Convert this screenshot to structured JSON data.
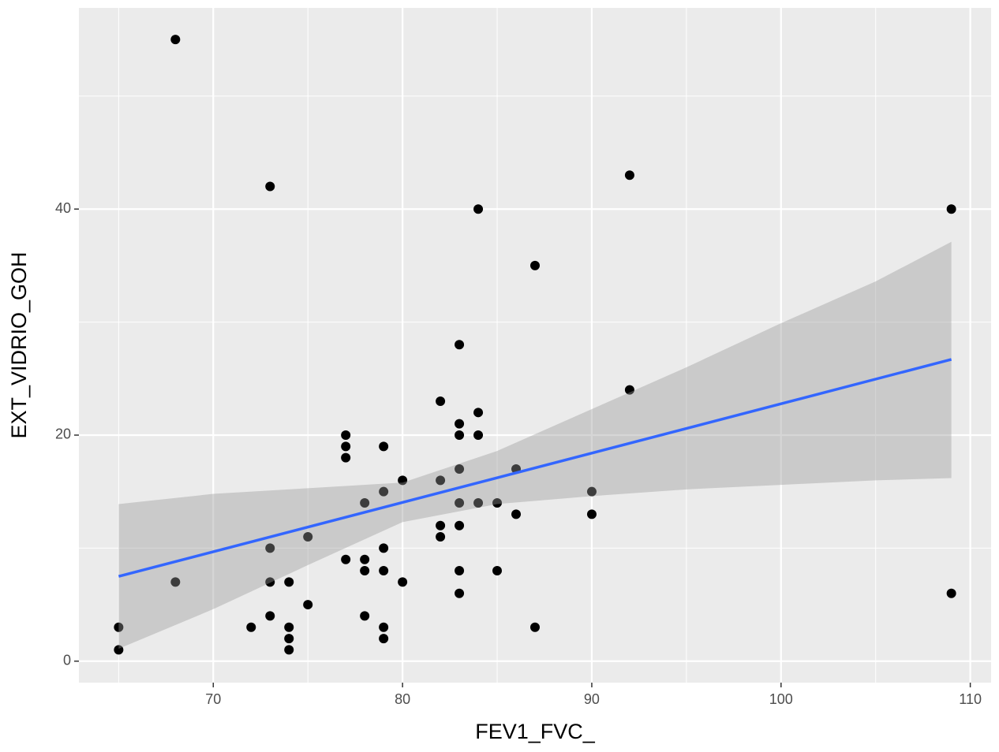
{
  "chart_data": {
    "type": "scatter",
    "x_label": "FEV1_FVC_",
    "y_label": "EXT_VIDRIO_GOH",
    "x": [
      68,
      73,
      92,
      84,
      109,
      87,
      83,
      92,
      82,
      84,
      83,
      83,
      84,
      77,
      77,
      79,
      77,
      83,
      86,
      80,
      82,
      79,
      90,
      78,
      83,
      84,
      85,
      86,
      90,
      82,
      83,
      75,
      82,
      73,
      79,
      77,
      78,
      78,
      79,
      83,
      85,
      68,
      73,
      74,
      80,
      83,
      109,
      75,
      73,
      78,
      65,
      72,
      74,
      79,
      87,
      74,
      79,
      65,
      74
    ],
    "y": [
      55,
      42,
      43,
      40,
      40,
      35,
      28,
      24,
      23,
      22,
      21,
      20,
      20,
      20,
      19,
      19,
      18,
      17,
      17,
      16,
      16,
      15,
      15,
      14,
      14,
      14,
      14,
      13,
      13,
      12,
      12,
      11,
      11,
      10,
      10,
      9,
      9,
      8,
      8,
      8,
      8,
      7,
      7,
      7,
      7,
      6,
      6,
      5,
      4,
      4,
      3,
      3,
      3,
      3,
      3,
      2,
      2,
      1,
      1
    ],
    "point_color": "#000000",
    "fit": {
      "x": [
        65,
        109
      ],
      "y": [
        7.5,
        26.7
      ],
      "color": "#3366FF"
    },
    "band": {
      "x": [
        65,
        70,
        75,
        80,
        85,
        90,
        95,
        100,
        105,
        109
      ],
      "lower": [
        1.1,
        4.6,
        8.5,
        12.3,
        13.9,
        14.6,
        15.2,
        15.6,
        16.0,
        16.2
      ],
      "upper": [
        13.9,
        14.8,
        15.3,
        15.8,
        18.6,
        22.3,
        26.0,
        29.9,
        33.6,
        37.1
      ],
      "color": "#999999"
    },
    "xlim": [
      62.9,
      111.1
    ],
    "ylim": [
      -1.9,
      57.8
    ],
    "xticks": [
      70,
      80,
      90,
      100,
      110
    ],
    "yticks": [
      0,
      20,
      40
    ],
    "x_minor_ticks": [
      65,
      75,
      85,
      95,
      105
    ],
    "y_minor_ticks": [
      10,
      30,
      50
    ],
    "grid": true
  }
}
